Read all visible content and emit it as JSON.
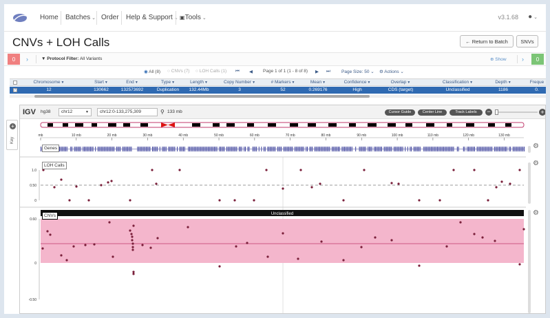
{
  "nav": {
    "home": "Home",
    "batches": "Batches",
    "order": "Order",
    "help": "Help & Support",
    "tools": "Tools",
    "version": "v3.1.68"
  },
  "page": {
    "title": "CNVs + LOH Calls",
    "return_label": "Return to Batch",
    "snvs_label": "SNVs"
  },
  "filter": {
    "left_count": "0",
    "right_count": "0",
    "label": "Protocol Filter:",
    "value": "All Variants",
    "show": "Show"
  },
  "pager": {
    "all": "All (8)",
    "cnvs": "CNVs (7)",
    "loh": "LOH Calls (1)",
    "page_info": "Page 1 of 1 (1 - 8 of 8)",
    "page_size": "Page Size: 50",
    "actions": "Actions"
  },
  "table": {
    "headers": [
      "Chromosome",
      "Start",
      "End",
      "Type",
      "Length",
      "Copy Number",
      "# Markers",
      "Mean",
      "Confidence",
      "Overlap",
      "Classification",
      "Depth",
      "Freque"
    ],
    "row": [
      "12",
      "130662",
      "132573692",
      "Duplication",
      "132.44Mb",
      "3",
      "52",
      "0.269176",
      "High",
      "CDS (target)",
      "Unclassified",
      "1186",
      "0."
    ]
  },
  "igv": {
    "logo": "IGV",
    "genome": "hg38",
    "chrom": "chr12",
    "locus": "chr12:0-133,275,309",
    "span": "133 mb",
    "btn_cursor": "Cursor Guide",
    "btn_center": "Center Line",
    "btn_labels": "Track Labels",
    "key": "Key",
    "ruler": [
      "mb",
      "10 mb",
      "20 mb",
      "30 mb",
      "40 mb",
      "50 mb",
      "60 mb",
      "70 mb",
      "80 mb",
      "90 mb",
      "100 mb",
      "110 mb",
      "120 mb",
      "130 mb"
    ],
    "genes_label": "Genes",
    "loh_label": "LOH Calls",
    "cnv_label": "CNVs",
    "cnv_banner": "Unclassified",
    "loh_ticks": [
      "1.0",
      "0.50",
      "0"
    ],
    "cnv_ticks": [
      "0.60",
      "0",
      "-0.50"
    ]
  },
  "colors": {
    "accent": "#2f6ab2",
    "cnv_band": "#f4b6cc",
    "cnv_line": "#c0396b",
    "dot": "#7a1f3a",
    "gene": "#3a3f9a"
  }
}
